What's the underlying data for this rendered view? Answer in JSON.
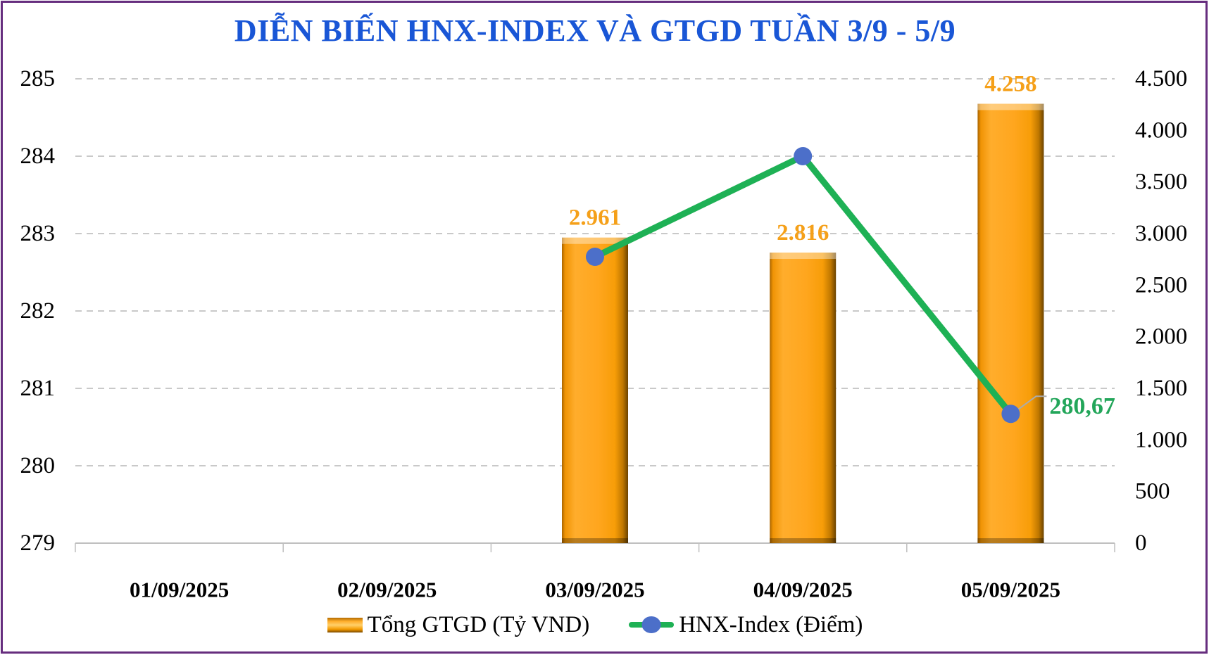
{
  "chart_data": {
    "type": "combo_bar_line",
    "title": "DIỄN BIẾN HNX-INDEX VÀ GTGD TUẦN 3/9 - 5/9",
    "categories": [
      "01/09/2025",
      "02/09/2025",
      "03/09/2025",
      "04/09/2025",
      "05/09/2025"
    ],
    "series": [
      {
        "name": "Tổng GTGD (Tỷ VND)",
        "type": "bar",
        "axis": "right",
        "values": [
          null,
          null,
          2961,
          2816,
          4258
        ],
        "labels": [
          null,
          null,
          "2.961",
          "2.816",
          "4.258"
        ]
      },
      {
        "name": "HNX-Index (Điểm)",
        "type": "line",
        "axis": "left",
        "values": [
          null,
          null,
          282.7,
          284.0,
          280.67
        ],
        "point_label": {
          "index": 4,
          "text": "280,67"
        }
      }
    ],
    "axes": {
      "left": {
        "min": 279,
        "max": 285,
        "ticks": [
          "285",
          "284",
          "283",
          "282",
          "281",
          "280",
          "279"
        ]
      },
      "right": {
        "min": 0,
        "max": 4500,
        "ticks": [
          "4.500",
          "4.000",
          "3.500",
          "3.000",
          "2.500",
          "2.000",
          "1.500",
          "1.000",
          "500",
          "0"
        ]
      }
    },
    "legend_position": "bottom",
    "grid": "horizontal-dashed",
    "colors": {
      "title": "#1956D6",
      "bar": "#FFA41E",
      "bar_label": "#F5A019",
      "line": "#1EB155",
      "marker": "#4C6FC9",
      "point_label": "#23A65A",
      "grid": "#C9C9C9",
      "axis_line": "#BFBFBF",
      "border": "#662D7E"
    }
  }
}
